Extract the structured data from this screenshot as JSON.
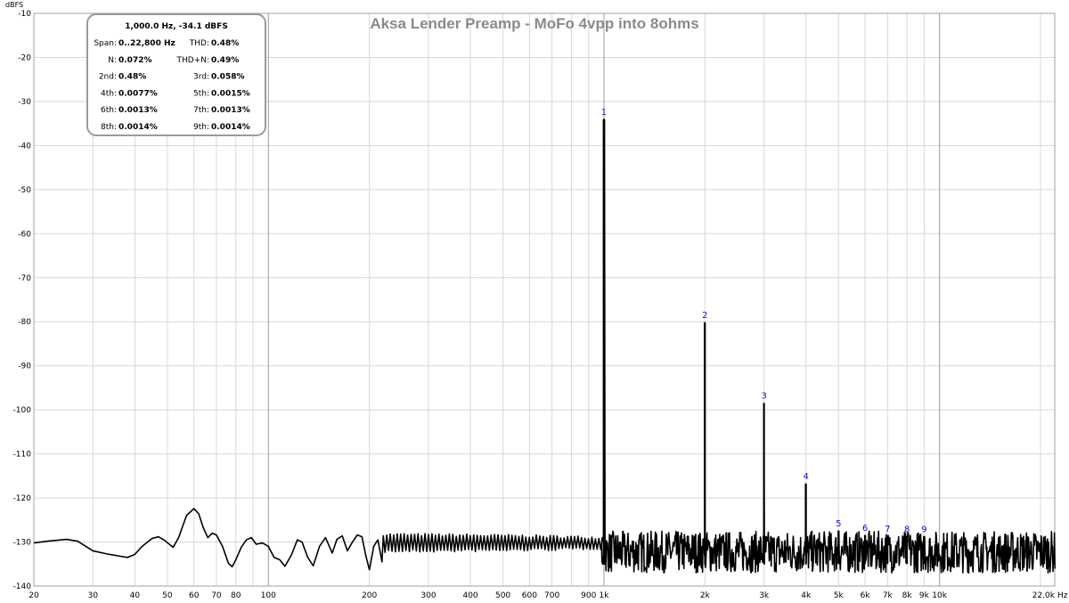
{
  "chart_data": {
    "type": "line",
    "title": "Aksa Lender Preamp - MoFo 4vpp into 8ohms",
    "ylabel": "dBFS",
    "xunit": "Hz",
    "xscale": "log",
    "xlim": [
      20,
      22050
    ],
    "ylim": [
      -140,
      -10
    ],
    "grid": true,
    "yticks": [
      -10,
      -20,
      -30,
      -40,
      -50,
      -60,
      -70,
      -80,
      -90,
      -100,
      -110,
      -120,
      -130,
      -140
    ],
    "xticks": [
      {
        "value": 20,
        "label": "20"
      },
      {
        "value": 30,
        "label": "30"
      },
      {
        "value": 40,
        "label": "40"
      },
      {
        "value": 50,
        "label": "50"
      },
      {
        "value": 60,
        "label": "60"
      },
      {
        "value": 70,
        "label": "70"
      },
      {
        "value": 80,
        "label": "80"
      },
      {
        "value": 100,
        "label": "100"
      },
      {
        "value": 200,
        "label": "200"
      },
      {
        "value": 300,
        "label": "300"
      },
      {
        "value": 400,
        "label": "400"
      },
      {
        "value": 500,
        "label": "500"
      },
      {
        "value": 600,
        "label": "600"
      },
      {
        "value": 700,
        "label": "700"
      },
      {
        "value": 900,
        "label": "900"
      },
      {
        "value": 1000,
        "label": "1k"
      },
      {
        "value": 2000,
        "label": "2k"
      },
      {
        "value": 3000,
        "label": "3k"
      },
      {
        "value": 4000,
        "label": "4k"
      },
      {
        "value": 5000,
        "label": "5k"
      },
      {
        "value": 6000,
        "label": "6k"
      },
      {
        "value": 7000,
        "label": "7k"
      },
      {
        "value": 8000,
        "label": "8k"
      },
      {
        "value": 9000,
        "label": "9k"
      },
      {
        "value": 10000,
        "label": "10k"
      },
      {
        "value": 22050,
        "label": "22.0k"
      }
    ],
    "series": [
      {
        "values_note": "spectrum",
        "color": "#000000",
        "points": [
          [
            20,
            -130.2
          ],
          [
            22,
            -129.8
          ],
          [
            25,
            -129.4
          ],
          [
            27,
            -129.8
          ],
          [
            30,
            -132.0
          ],
          [
            33,
            -132.7
          ],
          [
            36,
            -133.2
          ],
          [
            38,
            -133.5
          ],
          [
            40,
            -132.8
          ],
          [
            42,
            -131.0
          ],
          [
            45,
            -129.2
          ],
          [
            47,
            -128.8
          ],
          [
            49,
            -129.6
          ],
          [
            52,
            -131.2
          ],
          [
            54,
            -129.0
          ],
          [
            57,
            -124.0
          ],
          [
            60,
            -122.4
          ],
          [
            62,
            -123.6
          ],
          [
            64,
            -126.8
          ],
          [
            66,
            -129.0
          ],
          [
            68,
            -128.0
          ],
          [
            70,
            -128.4
          ],
          [
            73,
            -131.0
          ],
          [
            76,
            -134.8
          ],
          [
            78,
            -135.6
          ],
          [
            80,
            -134.0
          ],
          [
            83,
            -131.2
          ],
          [
            86,
            -129.5
          ],
          [
            89,
            -129.0
          ],
          [
            92,
            -130.5
          ],
          [
            96,
            -130.2
          ],
          [
            100,
            -131.0
          ],
          [
            104,
            -133.5
          ],
          [
            108,
            -134.0
          ],
          [
            112,
            -135.5
          ],
          [
            117,
            -133.0
          ],
          [
            122,
            -129.5
          ],
          [
            126,
            -130.0
          ],
          [
            131,
            -133.5
          ],
          [
            136,
            -135.4
          ],
          [
            142,
            -131.0
          ],
          [
            148,
            -129.0
          ],
          [
            155,
            -132.5
          ],
          [
            160,
            -129.4
          ],
          [
            166,
            -128.6
          ],
          [
            172,
            -132.0
          ],
          [
            178,
            -130.0
          ],
          [
            184,
            -128.4
          ],
          [
            190,
            -128.8
          ],
          [
            195,
            -133.0
          ],
          [
            200,
            -136.3
          ],
          [
            206,
            -131.0
          ],
          [
            212,
            -129.5
          ],
          [
            218,
            -134.5
          ]
        ],
        "pairs_from": 220,
        "noise_floor_above_1k": [
          -137,
          -127.5
        ]
      }
    ],
    "harmonics": [
      {
        "label": "1",
        "freq": 1000,
        "level": -34.1
      },
      {
        "label": "2",
        "freq": 2000,
        "level": -80.2
      },
      {
        "label": "3",
        "freq": 3000,
        "level": -98.5
      },
      {
        "label": "4",
        "freq": 4000,
        "level": -116.8
      },
      {
        "label": "5",
        "freq": 5000,
        "level": -127.5
      },
      {
        "label": "6",
        "freq": 6000,
        "level": -128.5
      },
      {
        "label": "7",
        "freq": 7000,
        "level": -128.7
      },
      {
        "label": "8",
        "freq": 8000,
        "level": -128.8
      },
      {
        "label": "9",
        "freq": 9000,
        "level": -128.8
      }
    ]
  },
  "info_box": {
    "header": "1,000.0 Hz, -34.1 dBFS",
    "rows": [
      {
        "l_label": "Span:",
        "l_value": "0..22,800 Hz",
        "r_label": "THD:",
        "r_value": "0.48%"
      },
      {
        "l_label": "N:",
        "l_value": "0.072%",
        "r_label": "THD+N:",
        "r_value": "0.49%"
      },
      {
        "l_label": "2nd:",
        "l_value": "0.48%",
        "r_label": "3rd:",
        "r_value": "0.058%"
      },
      {
        "l_label": "4th:",
        "l_value": "0.0077%",
        "r_label": "5th:",
        "r_value": "0.0015%"
      },
      {
        "l_label": "6th:",
        "l_value": "0.0013%",
        "r_label": "7th:",
        "r_value": "0.0013%"
      },
      {
        "l_label": "8th:",
        "l_value": "0.0014%",
        "r_label": "9th:",
        "r_value": "0.0014%"
      }
    ]
  }
}
